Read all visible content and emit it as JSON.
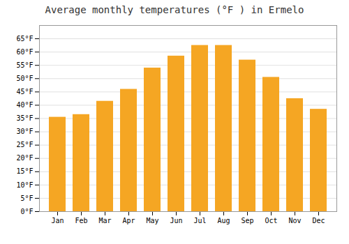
{
  "chart_data": {
    "type": "bar",
    "title": "Average monthly temperatures (°F ) in Ermelo",
    "categories": [
      "Jan",
      "Feb",
      "Mar",
      "Apr",
      "May",
      "Jun",
      "Jul",
      "Aug",
      "Sep",
      "Oct",
      "Nov",
      "Dec"
    ],
    "values": [
      35.5,
      36.5,
      41.5,
      46.0,
      54.0,
      58.5,
      62.5,
      62.5,
      57.0,
      50.5,
      42.5,
      38.5
    ],
    "color": "#F5A623",
    "ylim": [
      0,
      70
    ],
    "yticks": [
      {
        "value": 0,
        "label": "0°F"
      },
      {
        "value": 5,
        "label": "5°F"
      },
      {
        "value": 10,
        "label": "10°F"
      },
      {
        "value": 15,
        "label": "15°F"
      },
      {
        "value": 20,
        "label": "20°F"
      },
      {
        "value": 25,
        "label": "25°F"
      },
      {
        "value": 30,
        "label": "30°F"
      },
      {
        "value": 35,
        "label": "35°F"
      },
      {
        "value": 40,
        "label": "40°F"
      },
      {
        "value": 45,
        "label": "45°F"
      },
      {
        "value": 50,
        "label": "50°F"
      },
      {
        "value": 55,
        "label": "55°F"
      },
      {
        "value": 60,
        "label": "60°F"
      },
      {
        "value": 65,
        "label": "65°F"
      }
    ],
    "grid": true
  }
}
